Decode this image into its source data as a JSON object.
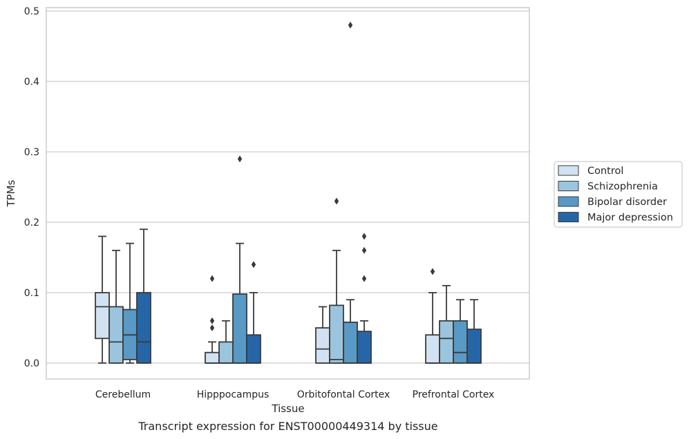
{
  "chart_data": {
    "type": "box",
    "xlabel": "Tissue",
    "ylabel": "TPMs",
    "caption": "Transcript expression for ENST00000449314 by tissue",
    "ylim": [
      -0.022,
      0.505
    ],
    "yticks": [
      "0.0",
      "0.1",
      "0.2",
      "0.3",
      "0.4",
      "0.5"
    ],
    "grid": true,
    "legend_position": "right",
    "categories": [
      "Cerebellum",
      "Hipppocampus",
      "Orbitofontal Cortex",
      "Prefrontal Cortex"
    ],
    "series": [
      {
        "name": "Control",
        "color": "#d1e2f2",
        "boxes": [
          {
            "whislo": 0.0,
            "q1": 0.035,
            "med": 0.08,
            "q3": 0.1,
            "whishi": 0.18,
            "fliers": []
          },
          {
            "whislo": 0.0,
            "q1": 0.0,
            "med": 0.0,
            "q3": 0.015,
            "whishi": 0.03,
            "fliers": [
              0.05,
              0.06,
              0.12
            ]
          },
          {
            "whislo": 0.0,
            "q1": 0.0,
            "med": 0.02,
            "q3": 0.05,
            "whishi": 0.08,
            "fliers": []
          },
          {
            "whislo": 0.0,
            "q1": 0.0,
            "med": 0.0,
            "q3": 0.04,
            "whishi": 0.1,
            "fliers": [
              0.13
            ]
          }
        ]
      },
      {
        "name": "Schizophrenia",
        "color": "#9bc5de",
        "boxes": [
          {
            "whislo": 0.0,
            "q1": 0.0,
            "med": 0.03,
            "q3": 0.08,
            "whishi": 0.16,
            "fliers": []
          },
          {
            "whislo": 0.0,
            "q1": 0.0,
            "med": 0.0,
            "q3": 0.03,
            "whishi": 0.06,
            "fliers": []
          },
          {
            "whislo": 0.0,
            "q1": 0.0,
            "med": 0.005,
            "q3": 0.082,
            "whishi": 0.16,
            "fliers": [
              0.23
            ]
          },
          {
            "whislo": 0.0,
            "q1": 0.0,
            "med": 0.035,
            "q3": 0.06,
            "whishi": 0.11,
            "fliers": []
          }
        ]
      },
      {
        "name": "Bipolar disorder",
        "color": "#5899c5",
        "boxes": [
          {
            "whislo": 0.0,
            "q1": 0.005,
            "med": 0.04,
            "q3": 0.076,
            "whishi": 0.17,
            "fliers": []
          },
          {
            "whislo": 0.0,
            "q1": 0.0,
            "med": 0.0,
            "q3": 0.098,
            "whishi": 0.17,
            "fliers": [
              0.29
            ]
          },
          {
            "whislo": 0.0,
            "q1": 0.0,
            "med": 0.0,
            "q3": 0.058,
            "whishi": 0.09,
            "fliers": [
              0.48
            ]
          },
          {
            "whislo": 0.0,
            "q1": 0.0,
            "med": 0.015,
            "q3": 0.06,
            "whishi": 0.09,
            "fliers": []
          }
        ]
      },
      {
        "name": "Major depression",
        "color": "#2666a7",
        "boxes": [
          {
            "whislo": 0.0,
            "q1": 0.0,
            "med": 0.03,
            "q3": 0.1,
            "whishi": 0.19,
            "fliers": []
          },
          {
            "whislo": 0.0,
            "q1": 0.0,
            "med": 0.0,
            "q3": 0.04,
            "whishi": 0.1,
            "fliers": [
              0.14
            ]
          },
          {
            "whislo": 0.0,
            "q1": 0.0,
            "med": 0.0,
            "q3": 0.045,
            "whishi": 0.06,
            "fliers": [
              0.12,
              0.16,
              0.18
            ]
          },
          {
            "whislo": 0.0,
            "q1": 0.0,
            "med": 0.0,
            "q3": 0.048,
            "whishi": 0.09,
            "fliers": []
          }
        ]
      }
    ]
  }
}
